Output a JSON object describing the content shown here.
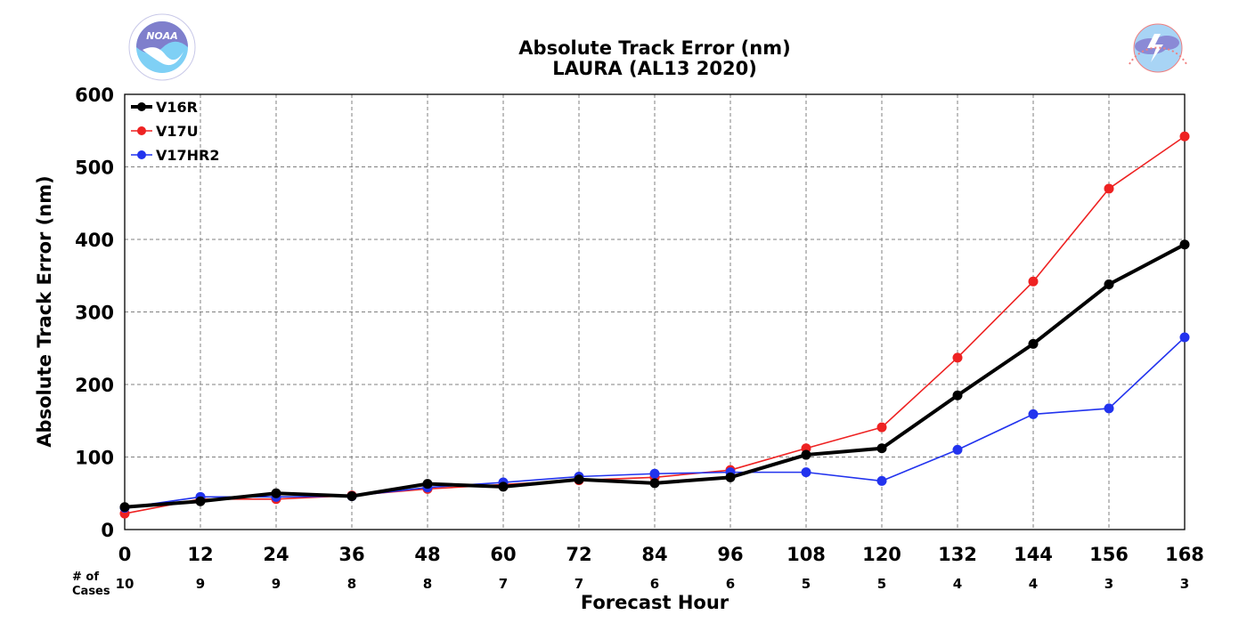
{
  "chart_data": {
    "type": "line",
    "title": "Absolute Track Error (nm)",
    "subtitle": "LAURA (AL13 2020)",
    "xlabel": "Forecast Hour",
    "ylabel": "Absolute Track Error (nm)",
    "x": [
      0,
      12,
      24,
      36,
      48,
      60,
      72,
      84,
      96,
      108,
      120,
      132,
      144,
      156,
      168
    ],
    "xlim": [
      0,
      168
    ],
    "ylim": [
      0,
      600
    ],
    "yticks": [
      0,
      100,
      200,
      300,
      400,
      500,
      600
    ],
    "grid": true,
    "legend_position": "top-left",
    "series": [
      {
        "name": "V16R",
        "color": "#000000",
        "width": 4,
        "values": [
          31,
          39,
          50,
          46,
          63,
          59,
          69,
          64,
          72,
          103,
          112,
          185,
          256,
          338,
          393
        ]
      },
      {
        "name": "V17U",
        "color": "#ee2222",
        "width": 1.6,
        "values": [
          22,
          42,
          42,
          47,
          56,
          62,
          68,
          72,
          82,
          112,
          141,
          237,
          342,
          470,
          542
        ]
      },
      {
        "name": "V17HR2",
        "color": "#2233ee",
        "width": 1.6,
        "values": [
          30,
          45,
          45,
          46,
          58,
          65,
          73,
          77,
          79,
          79,
          67,
          110,
          159,
          167,
          265
        ]
      }
    ],
    "cases_label_line1": "# of",
    "cases_label_line2": "Cases",
    "cases": [
      10,
      9,
      9,
      8,
      8,
      7,
      7,
      6,
      6,
      5,
      5,
      4,
      4,
      3,
      3
    ]
  },
  "logos": {
    "left": "NOAA",
    "left_text": "NATIONAL OCEANIC AND ATMOSPHERIC ADMINISTRATION · U.S. DEPARTMENT OF COMMERCE",
    "right_text": "NATIONAL WEATHER SERVICE",
    "left_colors": [
      "#7f7fcc",
      "#7fd0f5"
    ],
    "right_colors": [
      "#f07f7f",
      "#a8d4f5",
      "#8a8ad6"
    ]
  }
}
